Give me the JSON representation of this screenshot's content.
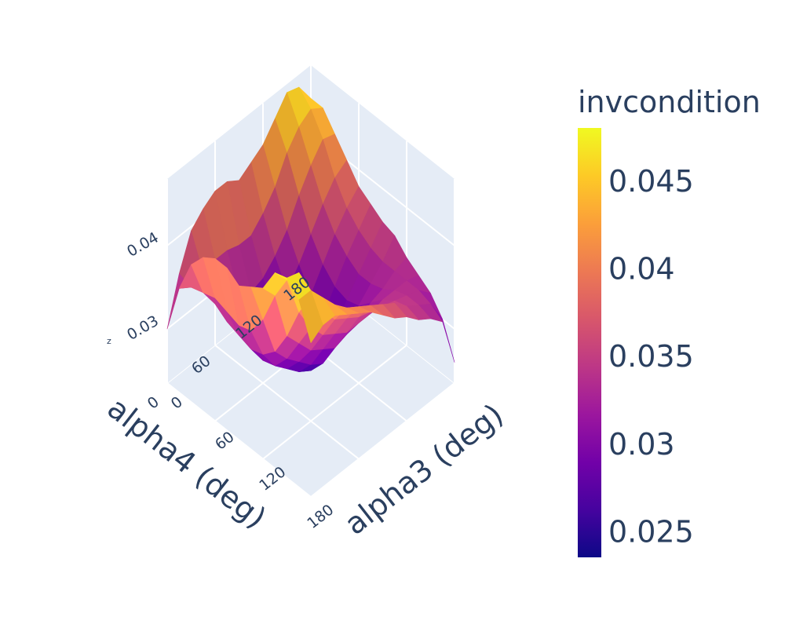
{
  "chart_data": {
    "type": "surface",
    "colorscale": "plasma",
    "colorbar": {
      "title": "invcondition",
      "range": [
        0.0235,
        0.048
      ],
      "ticks": [
        "0.025",
        "0.03",
        "0.035",
        "0.04",
        "0.045"
      ],
      "tick_values": [
        0.025,
        0.03,
        0.035,
        0.04,
        0.045
      ],
      "colors": [
        "#0d0887",
        "#46039f",
        "#7201a8",
        "#9c179e",
        "#bd3786",
        "#d8576b",
        "#ed7953",
        "#fb9f3a",
        "#fdca26",
        "#f0f921"
      ]
    },
    "x_axis": {
      "title": "alpha3 (deg)",
      "ticks": [
        "0",
        "60",
        "120",
        "180"
      ],
      "tick_values": [
        0,
        60,
        120,
        180
      ],
      "range": [
        0,
        180
      ]
    },
    "y_axis": {
      "title": "alpha4 (deg)",
      "ticks": [
        "0",
        "60",
        "120",
        "180"
      ],
      "tick_values": [
        0,
        60,
        120,
        180
      ],
      "range": [
        0,
        180
      ]
    },
    "z_axis": {
      "title": "z",
      "ticks": [
        "0.03",
        "0.04"
      ],
      "tick_values": [
        0.03,
        0.04
      ],
      "range": [
        0.0235,
        0.048
      ]
    },
    "x": [
      0,
      15,
      30,
      45,
      60,
      75,
      90,
      105,
      120,
      135,
      150,
      165,
      180
    ],
    "y": [
      0,
      15,
      30,
      45,
      60,
      75,
      90,
      105,
      120,
      135,
      150,
      165,
      180
    ],
    "z": [
      [
        0.03,
        0.036,
        0.04,
        0.042,
        0.043,
        0.043,
        0.042,
        0.043,
        0.044,
        0.047,
        0.0475,
        0.046,
        0.042
      ],
      [
        0.0355,
        0.035,
        0.0355,
        0.036,
        0.0355,
        0.035,
        0.0355,
        0.038,
        0.042,
        0.045,
        0.047,
        0.046,
        0.043
      ],
      [
        0.0395,
        0.0355,
        0.033,
        0.032,
        0.0315,
        0.031,
        0.0315,
        0.033,
        0.036,
        0.04,
        0.043,
        0.044,
        0.043
      ],
      [
        0.041,
        0.036,
        0.032,
        0.03,
        0.029,
        0.0285,
        0.029,
        0.031,
        0.034,
        0.037,
        0.04,
        0.042,
        0.042
      ],
      [
        0.042,
        0.036,
        0.0315,
        0.029,
        0.0275,
        0.027,
        0.0275,
        0.0295,
        0.032,
        0.035,
        0.038,
        0.0405,
        0.041
      ],
      [
        0.042,
        0.0355,
        0.031,
        0.0285,
        0.0265,
        0.0255,
        0.026,
        0.028,
        0.031,
        0.034,
        0.037,
        0.0395,
        0.04
      ],
      [
        0.041,
        0.0355,
        0.0315,
        0.029,
        0.026,
        0.0245,
        0.025,
        0.027,
        0.03,
        0.033,
        0.036,
        0.0385,
        0.0385
      ],
      [
        0.042,
        0.037,
        0.033,
        0.03,
        0.0275,
        0.026,
        0.0265,
        0.028,
        0.0305,
        0.033,
        0.0355,
        0.0375,
        0.037
      ],
      [
        0.043,
        0.039,
        0.035,
        0.032,
        0.0295,
        0.028,
        0.028,
        0.029,
        0.031,
        0.033,
        0.035,
        0.0365,
        0.036
      ],
      [
        0.045,
        0.042,
        0.038,
        0.0345,
        0.032,
        0.0305,
        0.03,
        0.0305,
        0.032,
        0.0335,
        0.0345,
        0.035,
        0.0345
      ],
      [
        0.047,
        0.044,
        0.0405,
        0.037,
        0.0345,
        0.033,
        0.032,
        0.032,
        0.0325,
        0.0335,
        0.034,
        0.034,
        0.0335
      ],
      [
        0.0465,
        0.045,
        0.0425,
        0.039,
        0.0365,
        0.035,
        0.034,
        0.0335,
        0.0335,
        0.0335,
        0.0335,
        0.033,
        0.032
      ],
      [
        0.044,
        0.044,
        0.042,
        0.04,
        0.038,
        0.037,
        0.036,
        0.0355,
        0.034,
        0.033,
        0.032,
        0.03,
        0.026
      ]
    ]
  }
}
